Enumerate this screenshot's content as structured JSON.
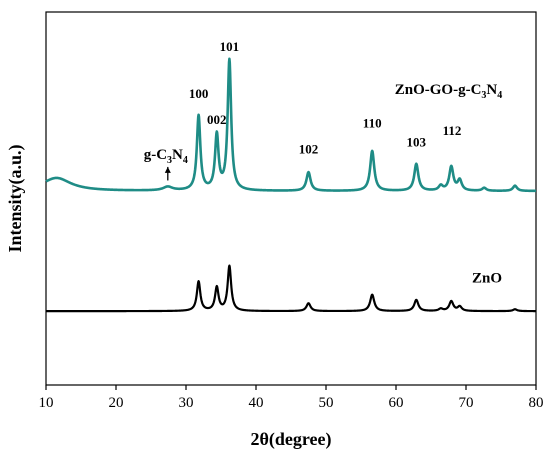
{
  "chart_data": {
    "type": "line",
    "xlabel": "2θ(degree)",
    "ylabel": "Intensity(a.u.)",
    "xlim": [
      10,
      80
    ],
    "x_ticks": [
      "10",
      "20",
      "30",
      "40",
      "50",
      "60",
      "70",
      "80"
    ],
    "y_ticks_shown": false,
    "grid": false,
    "colors": {
      "composite": "#1f8c86",
      "zno": "#000000",
      "axis": "#000000"
    },
    "series": [
      {
        "name": "ZnO-GO-g-C3N4",
        "color": "#1f8c86",
        "baseline": 0.52,
        "peaks": [
          {
            "x": 11.5,
            "height": 0.035,
            "width": 2.5
          },
          {
            "x": 27.4,
            "height": 0.01,
            "width": 0.8
          },
          {
            "x": 31.8,
            "height": 0.2,
            "width": 0.3
          },
          {
            "x": 34.4,
            "height": 0.147,
            "width": 0.3
          },
          {
            "x": 36.2,
            "height": 0.349,
            "width": 0.3
          },
          {
            "x": 47.5,
            "height": 0.05,
            "width": 0.35
          },
          {
            "x": 56.6,
            "height": 0.107,
            "width": 0.35
          },
          {
            "x": 62.9,
            "height": 0.072,
            "width": 0.35
          },
          {
            "x": 66.4,
            "height": 0.013,
            "width": 0.35
          },
          {
            "x": 67.9,
            "height": 0.064,
            "width": 0.35
          },
          {
            "x": 69.1,
            "height": 0.028,
            "width": 0.35
          },
          {
            "x": 72.6,
            "height": 0.008,
            "width": 0.35
          },
          {
            "x": 77.0,
            "height": 0.014,
            "width": 0.35
          }
        ]
      },
      {
        "name": "ZnO",
        "color": "#000000",
        "baseline": 0.198,
        "peaks": [
          {
            "x": 31.8,
            "height": 0.079,
            "width": 0.3
          },
          {
            "x": 34.4,
            "height": 0.063,
            "width": 0.3
          },
          {
            "x": 36.2,
            "height": 0.12,
            "width": 0.3
          },
          {
            "x": 47.5,
            "height": 0.021,
            "width": 0.35
          },
          {
            "x": 56.6,
            "height": 0.044,
            "width": 0.35
          },
          {
            "x": 62.9,
            "height": 0.03,
            "width": 0.35
          },
          {
            "x": 66.4,
            "height": 0.006,
            "width": 0.35
          },
          {
            "x": 67.9,
            "height": 0.026,
            "width": 0.35
          },
          {
            "x": 69.1,
            "height": 0.012,
            "width": 0.35
          },
          {
            "x": 77.0,
            "height": 0.005,
            "width": 0.35
          }
        ]
      }
    ],
    "peak_annotations": [
      {
        "text": "100",
        "x": 31.8,
        "y": 0.77
      },
      {
        "text": "002",
        "x": 34.4,
        "y": 0.7
      },
      {
        "text": "101",
        "x": 36.2,
        "y": 0.895
      },
      {
        "text": "102",
        "x": 47.5,
        "y": 0.62
      },
      {
        "text": "110",
        "x": 56.6,
        "y": 0.69
      },
      {
        "text": "103",
        "x": 62.9,
        "y": 0.64
      },
      {
        "text": "112",
        "x": 68.0,
        "y": 0.67
      }
    ],
    "gcn_annotation": {
      "x": 27.4,
      "y": 0.59,
      "arrow_to_y": 0.535
    },
    "labels": {
      "composite_label": {
        "x": 67.5,
        "y": 0.78
      },
      "zno_label": {
        "x": 73.0,
        "y": 0.275
      }
    },
    "label_text": {
      "gcn": "g-C3N4",
      "composite": "ZnO-GO-g-C3N4",
      "zno": "ZnO"
    }
  }
}
